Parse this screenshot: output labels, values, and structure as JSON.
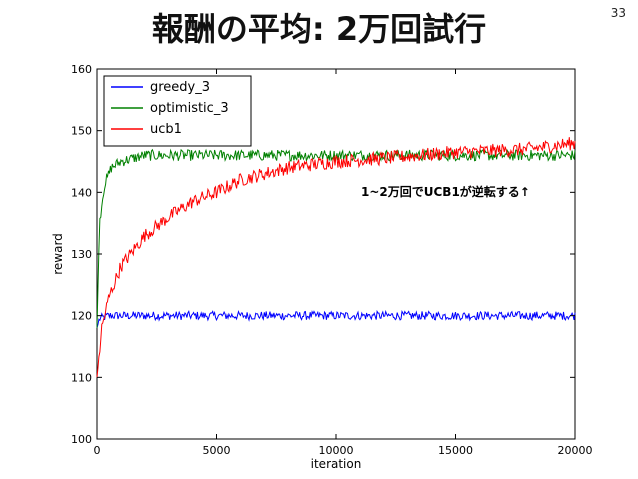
{
  "slide": {
    "title": "報酬の平均: 2万回試行",
    "page_number": "33"
  },
  "chart_data": {
    "type": "line",
    "xlabel": "iteration",
    "ylabel": "reward",
    "xlim": [
      0,
      20000
    ],
    "ylim": [
      100,
      160
    ],
    "xticks": [
      "0",
      "5000",
      "10000",
      "15000",
      "20000"
    ],
    "yticks": [
      "100",
      "110",
      "120",
      "130",
      "140",
      "150",
      "160"
    ],
    "grid": false,
    "legend_position": "top-left",
    "annotation": "1~2万回でUCB1が逆転する↑",
    "series": [
      {
        "name": "greedy_3",
        "color": "#0000ff",
        "x": [
          0,
          100,
          500,
          1000,
          5000,
          10000,
          15000,
          20000
        ],
        "y": [
          118,
          119.5,
          120,
          120,
          120,
          120,
          120,
          120
        ]
      },
      {
        "name": "optimistic_3",
        "color": "#008000",
        "x": [
          0,
          100,
          300,
          600,
          1000,
          2000,
          5000,
          10000,
          15000,
          20000
        ],
        "y": [
          118,
          135,
          141,
          144,
          145,
          146,
          146,
          146,
          146,
          146
        ]
      },
      {
        "name": "ucb1",
        "color": "#ff0000",
        "x": [
          0,
          200,
          500,
          1000,
          2000,
          3000,
          4000,
          5000,
          6000,
          8000,
          10000,
          12000,
          15000,
          18000,
          20000
        ],
        "y": [
          110,
          118,
          123,
          128,
          133,
          136,
          138.5,
          140,
          142,
          144,
          145,
          145.5,
          146.5,
          147,
          148
        ]
      }
    ]
  }
}
